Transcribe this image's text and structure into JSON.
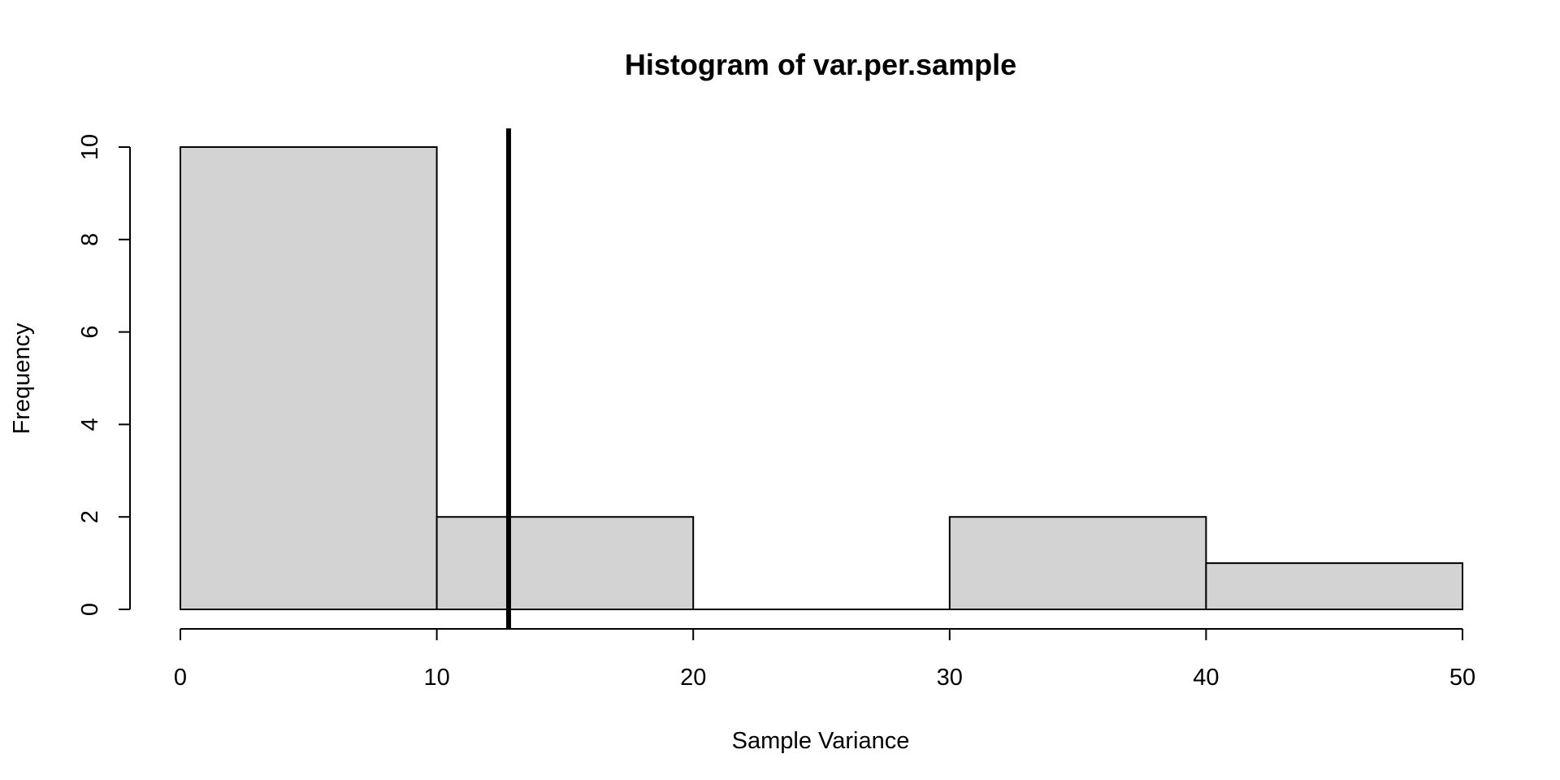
{
  "chart_data": {
    "type": "bar",
    "title": "Histogram of var.per.sample",
    "xlabel": "Sample Variance",
    "ylabel": "Frequency",
    "bins": [
      {
        "start": 0,
        "end": 10,
        "count": 10
      },
      {
        "start": 10,
        "end": 20,
        "count": 2
      },
      {
        "start": 20,
        "end": 30,
        "count": 0
      },
      {
        "start": 30,
        "end": 40,
        "count": 2
      },
      {
        "start": 40,
        "end": 50,
        "count": 1
      }
    ],
    "xlim": [
      0,
      50
    ],
    "ylim": [
      0,
      10
    ],
    "x_ticks": [
      0,
      10,
      20,
      30,
      40,
      50
    ],
    "y_ticks": [
      0,
      2,
      4,
      6,
      8,
      10
    ],
    "vertical_line": {
      "x": 12.8
    },
    "bar_fill": "#d3d3d3",
    "bar_stroke": "#000000",
    "grid": false,
    "legend": "none"
  }
}
